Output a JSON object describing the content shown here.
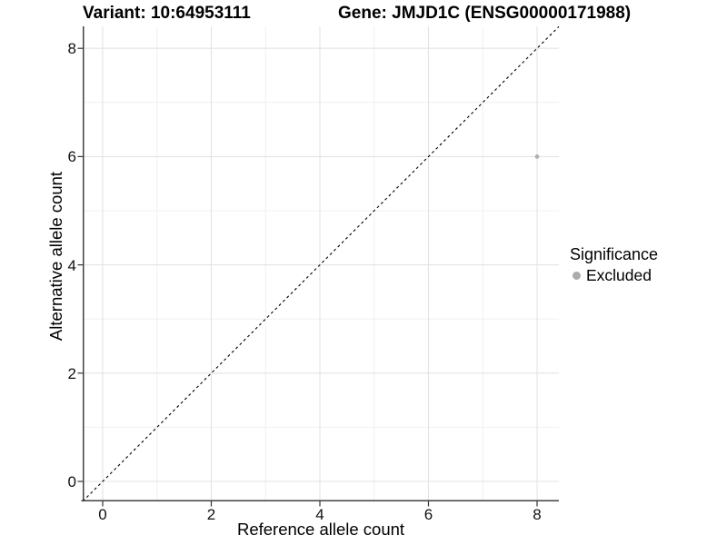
{
  "chart_data": {
    "type": "scatter",
    "title_left": "Variant: 10:64953111",
    "title_right": "Gene: JMJD1C (ENSG00000171988)",
    "xlabel": "Reference allele count",
    "ylabel": "Alternative allele count",
    "xlim": [
      -0.37,
      8.4
    ],
    "ylim": [
      -0.39,
      8.4
    ],
    "xticks": [
      0,
      2,
      4,
      6,
      8
    ],
    "yticks": [
      0,
      2,
      4,
      6,
      8
    ],
    "minor_xticks": [
      1,
      3,
      5,
      7
    ],
    "minor_yticks": [
      1,
      3,
      5,
      7
    ],
    "grid": true,
    "points": [
      {
        "x": 8,
        "y": 6,
        "series": "Excluded"
      }
    ],
    "reference_line": {
      "type": "identity",
      "equation": "y = x",
      "style": "dashed",
      "color": "#000000"
    },
    "legend": {
      "title": "Significance",
      "position": "right",
      "items": [
        {
          "label": "Excluded",
          "color": "#ababab"
        }
      ]
    },
    "colors": {
      "point": "#b0b0b0",
      "grid_major": "#e3e3e3",
      "grid_minor": "#f0f0f0",
      "axis_line": "#404040",
      "tick_mark": "#333333",
      "text": "#000000"
    }
  }
}
